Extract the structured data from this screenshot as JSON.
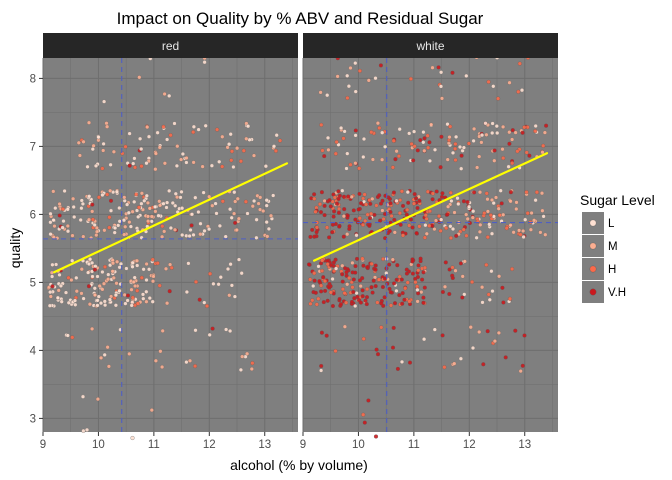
{
  "chart_data": {
    "type": "scatter",
    "title": "Impact on Quality by % ABV and Residual Sugar",
    "xlabel": "alcohol (% by volume)",
    "ylabel": "quality",
    "xlim": [
      9,
      13.6
    ],
    "ylim": [
      2.8,
      8.3
    ],
    "xticks": [
      9,
      10,
      11,
      12,
      13
    ],
    "yticks": [
      3,
      4,
      5,
      6,
      7,
      8
    ],
    "grid": true,
    "panel_background": "#7f7f7f",
    "grid_color": "#6e6e6e",
    "strip_background": "#262626",
    "strip_text_color": "#e6e6e6",
    "reference_line_color": "#4f5fc2",
    "trend_color": "#ffff00",
    "jitter": 0.35,
    "legend": {
      "title": "Sugar Level",
      "position": "right",
      "items": [
        {
          "label": "L",
          "color": "#fee0d2"
        },
        {
          "label": "M",
          "color": "#fcae91"
        },
        {
          "label": "H",
          "color": "#fb6a4a"
        },
        {
          "label": "V.H",
          "color": "#cb181d"
        }
      ]
    },
    "panels": [
      {
        "name": "red",
        "vline": 10.42,
        "hline": 5.64,
        "trend": {
          "x1": 9.2,
          "y1": 5.15,
          "x2": 13.4,
          "y2": 6.75
        },
        "clusters": [
          {
            "q": 5,
            "x_min": 9.1,
            "x_max": 11.0,
            "n": 170,
            "mix": [
              0.5,
              0.35,
              0.12,
              0.03
            ]
          },
          {
            "q": 5,
            "x_min": 11.0,
            "x_max": 12.6,
            "n": 25,
            "mix": [
              0.45,
              0.35,
              0.15,
              0.05
            ]
          },
          {
            "q": 6,
            "x_min": 9.1,
            "x_max": 11.7,
            "n": 170,
            "mix": [
              0.5,
              0.35,
              0.12,
              0.03
            ]
          },
          {
            "q": 6,
            "x_min": 11.7,
            "x_max": 13.2,
            "n": 50,
            "mix": [
              0.5,
              0.35,
              0.12,
              0.03
            ]
          },
          {
            "q": 7,
            "x_min": 9.6,
            "x_max": 13.3,
            "n": 90,
            "mix": [
              0.5,
              0.35,
              0.12,
              0.03
            ]
          },
          {
            "q": 8,
            "x_min": 10.0,
            "x_max": 12.5,
            "n": 7,
            "mix": [
              0.6,
              0.4,
              0,
              0
            ]
          },
          {
            "q": 4,
            "x_min": 9.2,
            "x_max": 13.0,
            "n": 28,
            "mix": [
              0.4,
              0.35,
              0.2,
              0.05
            ]
          },
          {
            "q": 3,
            "x_min": 9.7,
            "x_max": 11.0,
            "n": 6,
            "mix": [
              0.5,
              0.5,
              0,
              0
            ]
          }
        ]
      },
      {
        "name": "white",
        "vline": 10.51,
        "hline": 5.88,
        "trend": {
          "x1": 9.2,
          "y1": 5.32,
          "x2": 13.4,
          "y2": 6.9
        },
        "clusters": [
          {
            "q": 5,
            "x_min": 9.1,
            "x_max": 11.2,
            "n": 200,
            "mix": [
              0.05,
              0.1,
              0.3,
              0.55
            ]
          },
          {
            "q": 5,
            "x_min": 11.2,
            "x_max": 12.8,
            "n": 30,
            "mix": [
              0.15,
              0.2,
              0.35,
              0.3
            ]
          },
          {
            "q": 6,
            "x_min": 9.1,
            "x_max": 11.6,
            "n": 200,
            "mix": [
              0.05,
              0.1,
              0.3,
              0.55
            ]
          },
          {
            "q": 6,
            "x_min": 11.6,
            "x_max": 13.4,
            "n": 100,
            "mix": [
              0.3,
              0.3,
              0.25,
              0.15
            ]
          },
          {
            "q": 7,
            "x_min": 9.3,
            "x_max": 13.4,
            "n": 130,
            "mix": [
              0.3,
              0.3,
              0.25,
              0.15
            ]
          },
          {
            "q": 8,
            "x_min": 9.3,
            "x_max": 13.3,
            "n": 35,
            "mix": [
              0.3,
              0.3,
              0.25,
              0.15
            ]
          },
          {
            "q": 4,
            "x_min": 9.2,
            "x_max": 13.0,
            "n": 35,
            "mix": [
              0.15,
              0.2,
              0.3,
              0.35
            ]
          },
          {
            "q": 3,
            "x_min": 9.9,
            "x_max": 11.0,
            "n": 4,
            "mix": [
              0,
              0,
              0.5,
              0.5
            ]
          }
        ]
      }
    ]
  }
}
